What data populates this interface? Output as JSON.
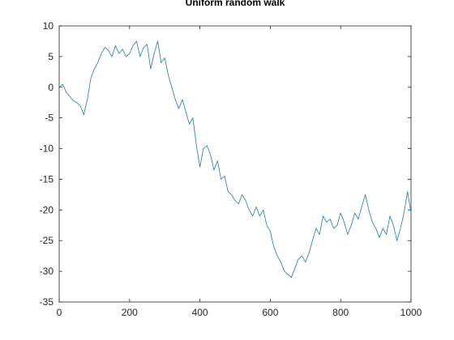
{
  "chart_data": {
    "type": "line",
    "title": "Uniform random walk",
    "xlabel": "",
    "ylabel": "",
    "xlim": [
      0,
      1000
    ],
    "ylim": [
      -35,
      10
    ],
    "xticks": [
      0,
      200,
      400,
      600,
      800,
      1000
    ],
    "yticks": [
      10,
      5,
      0,
      -5,
      -10,
      -15,
      -20,
      -25,
      -30,
      -35
    ],
    "grid": false,
    "legend": "none",
    "colors": {
      "line": "#1f77b4",
      "axis": "#262626",
      "background": "#ffffff"
    },
    "series": [
      {
        "x": [
          0,
          10,
          20,
          30,
          40,
          50,
          60,
          70,
          80,
          90,
          100,
          110,
          120,
          130,
          140,
          150,
          160,
          170,
          180,
          190,
          200,
          210,
          220,
          230,
          240,
          250,
          260,
          270,
          280,
          290,
          300,
          310,
          320,
          330,
          340,
          350,
          360,
          370,
          380,
          390,
          400,
          410,
          420,
          430,
          440,
          450,
          460,
          470,
          480,
          490,
          500,
          510,
          520,
          530,
          540,
          550,
          560,
          570,
          580,
          590,
          600,
          610,
          620,
          630,
          640,
          650,
          660,
          670,
          680,
          690,
          700,
          710,
          720,
          730,
          740,
          750,
          760,
          770,
          780,
          790,
          800,
          810,
          820,
          830,
          840,
          850,
          860,
          870,
          880,
          890,
          900,
          910,
          920,
          930,
          940,
          950,
          960,
          970,
          980,
          990,
          1000
        ],
        "values": [
          0.0,
          0.5,
          -0.8,
          -1.5,
          -2.2,
          -2.5,
          -3.0,
          -4.5,
          -2.0,
          1.5,
          3.0,
          4.0,
          5.5,
          6.5,
          6.0,
          5.0,
          6.8,
          5.5,
          6.2,
          5.0,
          5.5,
          6.8,
          7.5,
          5.0,
          6.5,
          7.0,
          3.0,
          5.5,
          7.5,
          4.0,
          4.8,
          2.0,
          0.0,
          -2.0,
          -3.5,
          -2.0,
          -4.0,
          -6.0,
          -5.0,
          -9.5,
          -13.0,
          -10.0,
          -9.5,
          -11.0,
          -13.5,
          -12.0,
          -15.0,
          -14.5,
          -17.0,
          -17.5,
          -18.5,
          -19.0,
          -17.5,
          -18.5,
          -20.0,
          -21.0,
          -19.5,
          -21.0,
          -20.0,
          -22.5,
          -23.5,
          -26.0,
          -27.5,
          -28.5,
          -30.0,
          -30.5,
          -31.0,
          -29.5,
          -28.0,
          -27.5,
          -28.5,
          -27.0,
          -25.0,
          -23.0,
          -24.0,
          -21.0,
          -22.0,
          -21.5,
          -23.0,
          -22.5,
          -20.5,
          -22.0,
          -24.0,
          -22.5,
          -20.5,
          -21.5,
          -19.5,
          -17.5,
          -20.0,
          -22.0,
          -23.0,
          -24.5,
          -23.0,
          -24.0,
          -21.0,
          -22.5,
          -25.0,
          -23.0,
          -20.5,
          -17.0,
          -20.5
        ]
      }
    ]
  }
}
